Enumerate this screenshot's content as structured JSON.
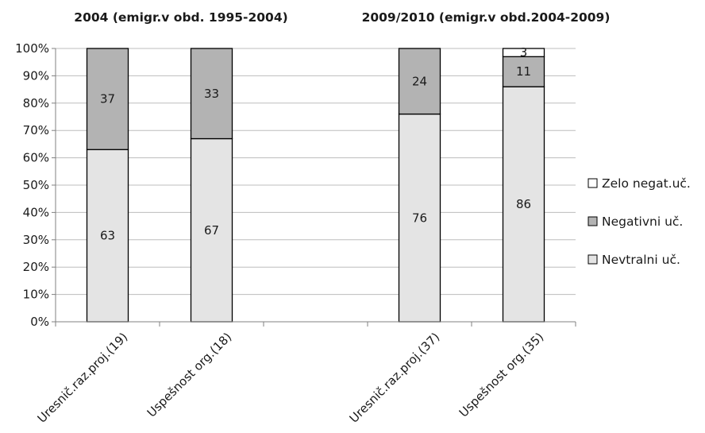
{
  "chart_data": {
    "type": "bar",
    "stacked": true,
    "percent": true,
    "groups": [
      {
        "title": "2004 (emigr.v obd.  1995-2004)",
        "categories": [
          "Uresnič.raz.proj.(19)",
          "Uspešnost org.(18)"
        ]
      },
      {
        "title": "2009/2010  (emigr.v obd.2004-2009)",
        "categories": [
          "Uresnič.raz.proj.(37)",
          "Uspešnost org.(35)"
        ]
      }
    ],
    "series": [
      {
        "name": "Nevtralni uč.",
        "color": "#e4e4e4",
        "values": [
          63,
          67,
          76,
          86
        ],
        "labels": [
          "63",
          "67",
          "76",
          "86"
        ]
      },
      {
        "name": "Negativni uč.",
        "color": "#b3b3b3",
        "values": [
          37,
          33,
          24,
          11
        ],
        "labels": [
          "37",
          "33",
          "24",
          "11"
        ]
      },
      {
        "name": "Zelo negat.uč.",
        "color": "#ffffff",
        "values": [
          0,
          0,
          0,
          3
        ],
        "labels": [
          "",
          "",
          "",
          "3"
        ]
      }
    ],
    "yticks": [
      "0%",
      "10%",
      "20%",
      "30%",
      "40%",
      "50%",
      "60%",
      "70%",
      "80%",
      "90%",
      "100%"
    ],
    "ylim": [
      0,
      100
    ],
    "grid": true,
    "legend_position": "right",
    "xlabel": "",
    "ylabel": ""
  }
}
